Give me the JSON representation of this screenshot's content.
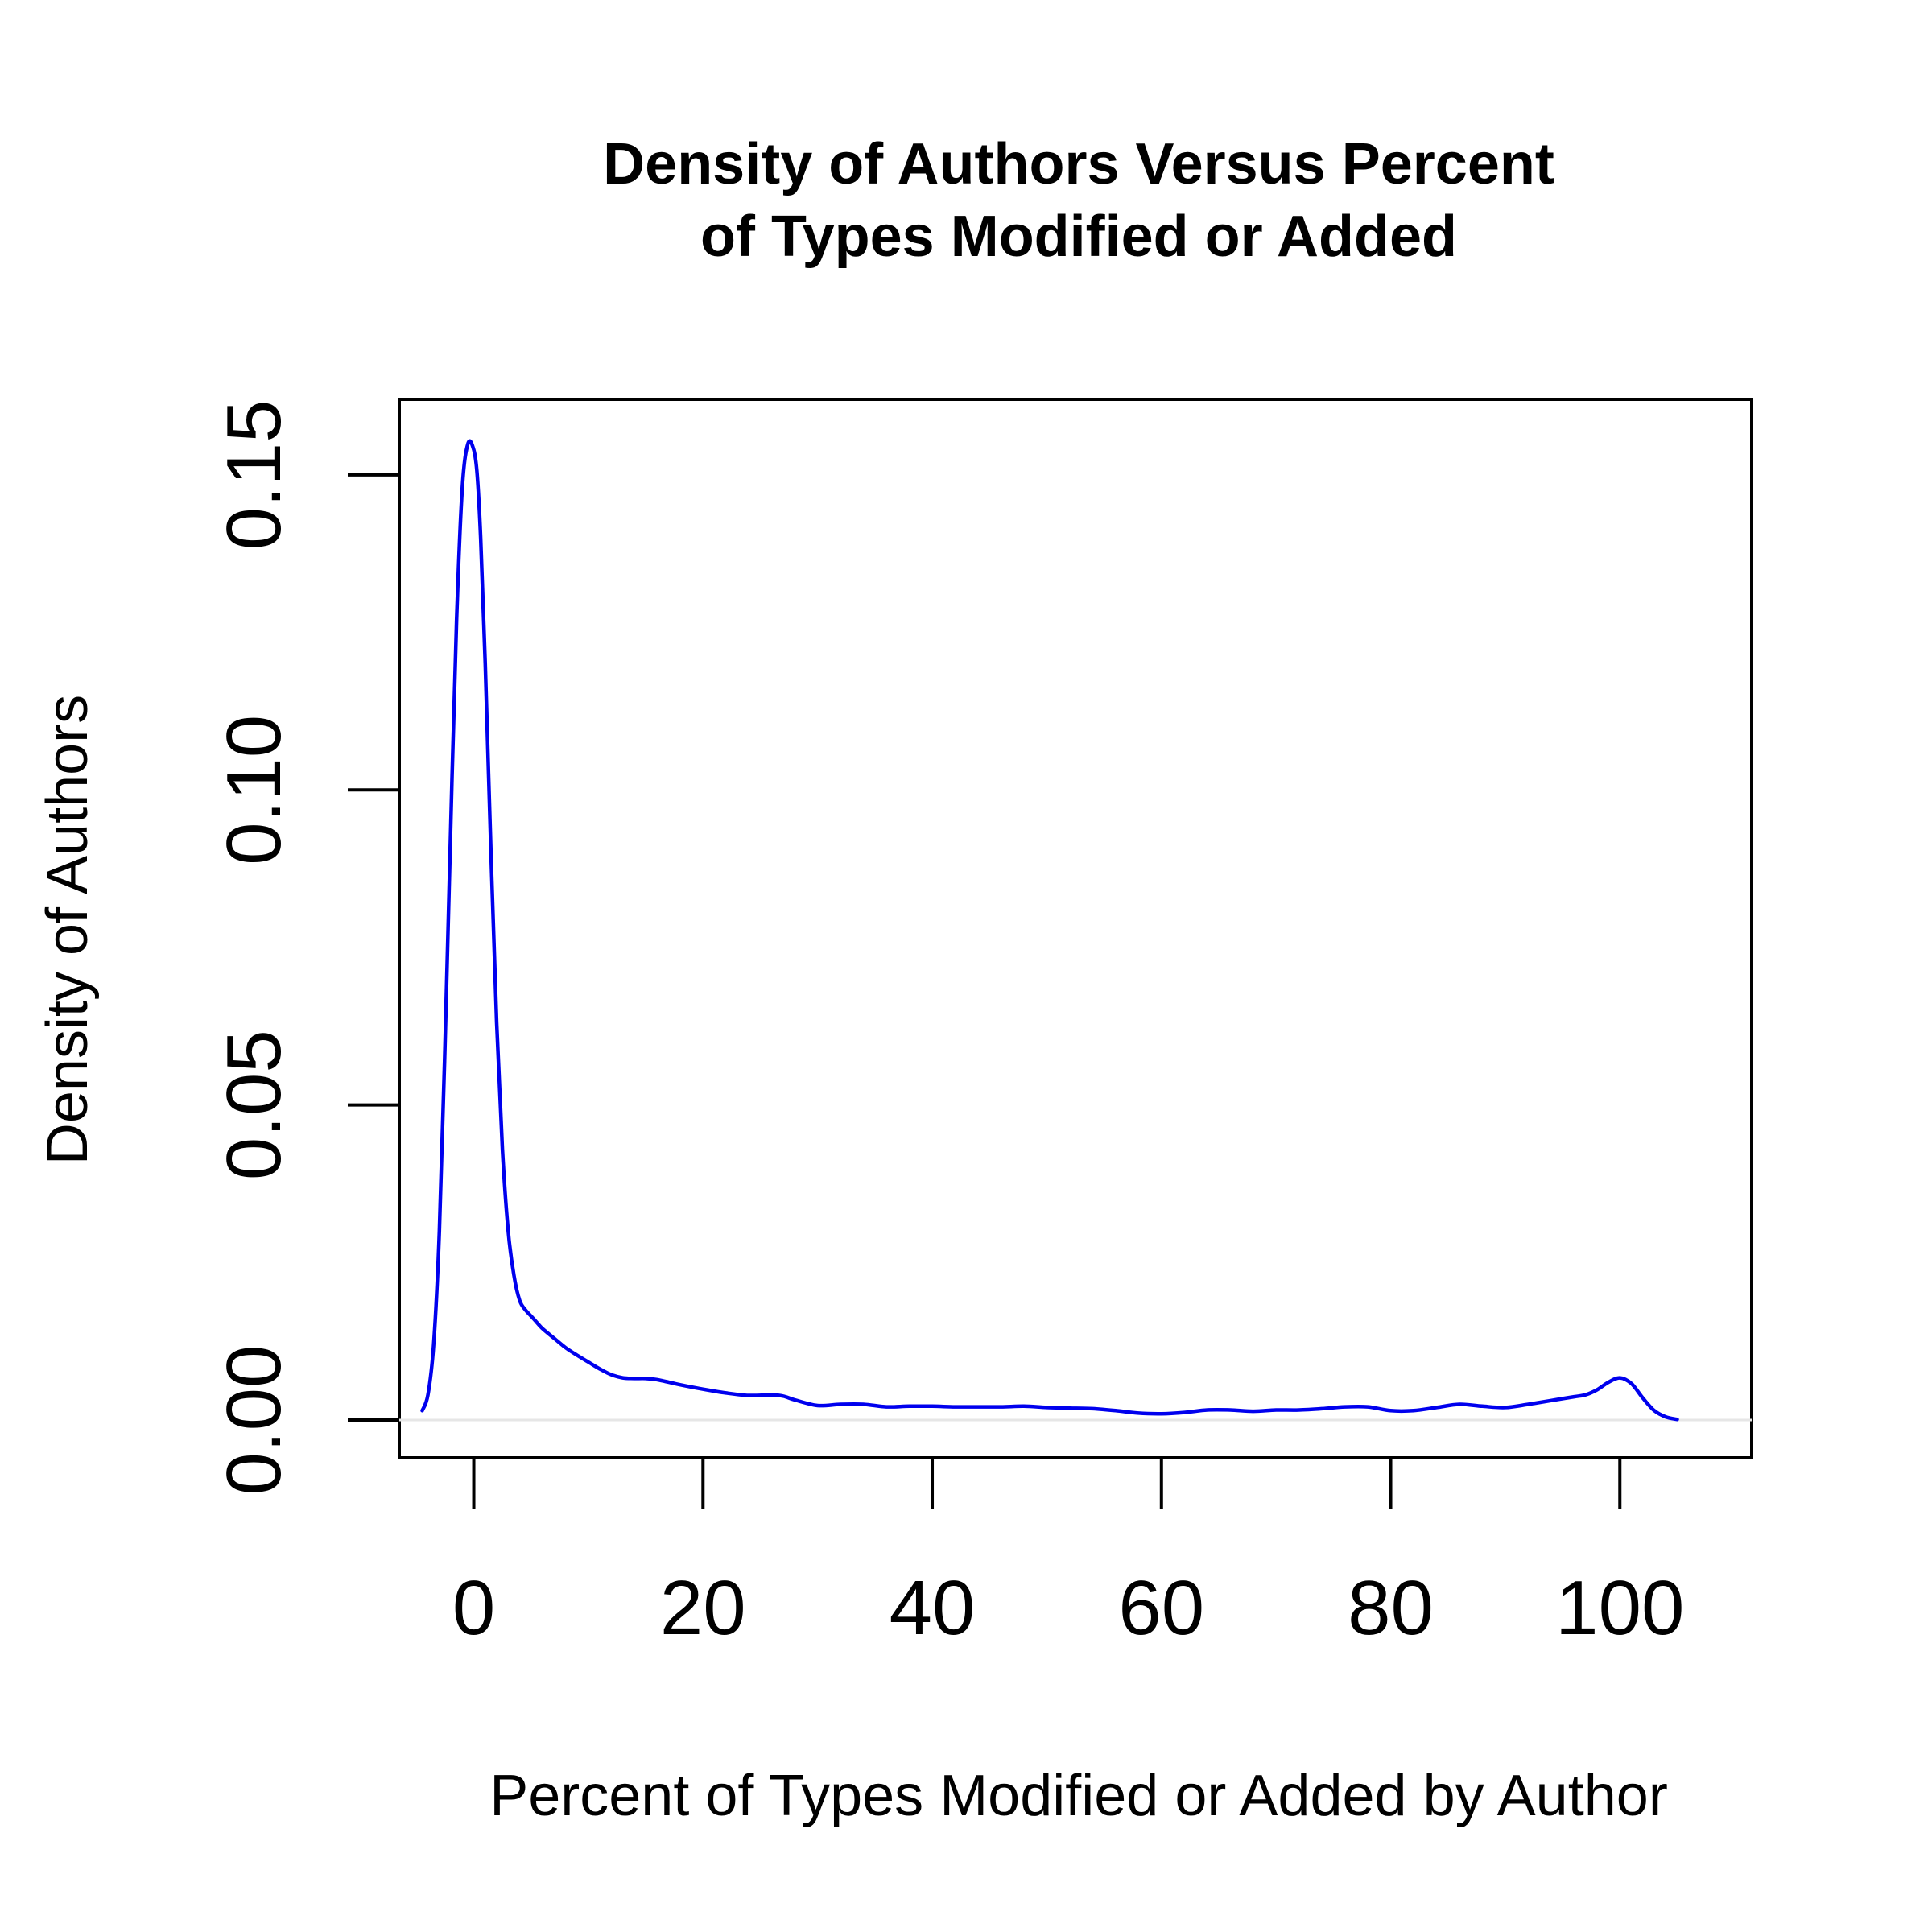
{
  "chart_data": {
    "type": "line",
    "title_lines": [
      "Density of Authors Versus Percent",
      "of Types Modified or Added"
    ],
    "xlabel": "Percent of Types Modified or Added by Author",
    "ylabel": "Density of Authors",
    "xlim": [
      -6.5,
      111.5
    ],
    "ylim": [
      -0.006,
      0.162
    ],
    "x_ticks": [
      0,
      20,
      40,
      60,
      80,
      100
    ],
    "x_tick_labels": [
      "0",
      "20",
      "40",
      "60",
      "80",
      "100"
    ],
    "y_ticks": [
      0.0,
      0.05,
      0.1,
      0.15
    ],
    "y_tick_labels": [
      "0.00",
      "0.05",
      "0.10",
      "0.15"
    ],
    "baseline": 0,
    "line_color": "#0000ee",
    "baseline_color": "#e6e6e6",
    "series": [
      {
        "x": [
          -4.5,
          -4,
          -3.5,
          -3,
          -2.5,
          -2,
          -1.5,
          -1,
          -0.5,
          0,
          0.3,
          0.6,
          1,
          1.5,
          2,
          2.5,
          3,
          3.5,
          4,
          4.5,
          5,
          5.5,
          6,
          7,
          8,
          9,
          10,
          11,
          12,
          13,
          14,
          15,
          16,
          18,
          20,
          22,
          24,
          26,
          27,
          28,
          30,
          32,
          34,
          36,
          38,
          40,
          42,
          44,
          46,
          48,
          50,
          52,
          54,
          56,
          58,
          60,
          62,
          64,
          66,
          68,
          70,
          72,
          74,
          76,
          78,
          80,
          82,
          84,
          86,
          88,
          90,
          92,
          94,
          96,
          97,
          98,
          99,
          100,
          101,
          102,
          103,
          104,
          105
        ],
        "y": [
          0.0015,
          0.004,
          0.012,
          0.03,
          0.06,
          0.095,
          0.127,
          0.148,
          0.155,
          0.154,
          0.15,
          0.14,
          0.12,
          0.09,
          0.063,
          0.043,
          0.03,
          0.023,
          0.019,
          0.0175,
          0.0165,
          0.0155,
          0.0145,
          0.013,
          0.0115,
          0.0103,
          0.0092,
          0.0081,
          0.0072,
          0.0067,
          0.0066,
          0.0066,
          0.0064,
          0.0056,
          0.0049,
          0.0043,
          0.0039,
          0.004,
          0.0038,
          0.0032,
          0.0023,
          0.0025,
          0.0025,
          0.0021,
          0.0022,
          0.0022,
          0.0021,
          0.0021,
          0.0021,
          0.0022,
          0.002,
          0.0019,
          0.0018,
          0.0015,
          0.0011,
          0.001,
          0.0012,
          0.0016,
          0.0016,
          0.0014,
          0.0016,
          0.0016,
          0.0018,
          0.0021,
          0.0021,
          0.0015,
          0.0015,
          0.002,
          0.0025,
          0.0022,
          0.002,
          0.0025,
          0.0031,
          0.0037,
          0.004,
          0.0048,
          0.006,
          0.0067,
          0.0058,
          0.0035,
          0.0015,
          0.0005,
          0.0001
        ]
      }
    ]
  }
}
